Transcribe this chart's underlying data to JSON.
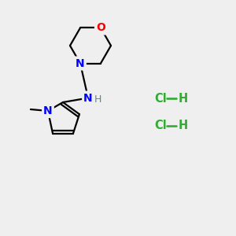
{
  "bg_color": "#efefef",
  "atom_colors": {
    "O": "#ff0000",
    "N": "#0000ff",
    "C": "#000000",
    "H": "#4a9090",
    "Cl": "#33aa33"
  },
  "hcl_color": "#33aa33",
  "bond_color": "#000000",
  "bond_width": 1.6
}
